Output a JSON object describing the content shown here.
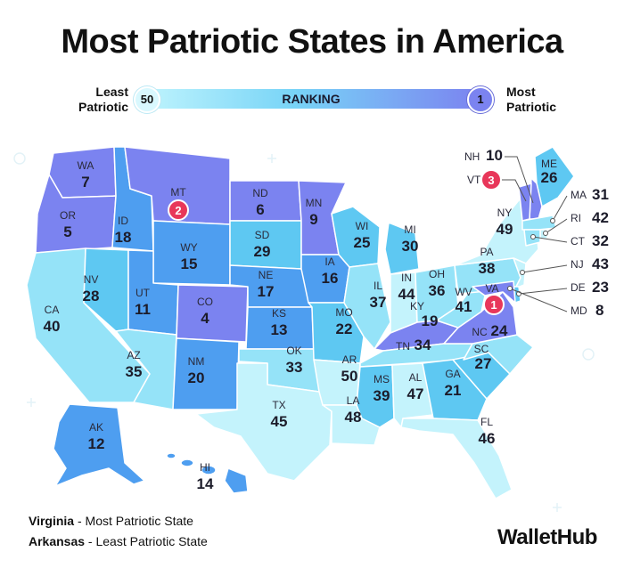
{
  "title": "Most Patriotic States in America",
  "legend": {
    "left_label": "Least Patriotic",
    "left_rank": "50",
    "center_label": "RANKING",
    "right_rank": "1",
    "right_label": "Most Patriotic"
  },
  "states": {
    "WA": {
      "abbr": "WA",
      "rank": "7"
    },
    "OR": {
      "abbr": "OR",
      "rank": "5"
    },
    "CA": {
      "abbr": "CA",
      "rank": "40"
    },
    "ID": {
      "abbr": "ID",
      "rank": "18"
    },
    "NV": {
      "abbr": "NV",
      "rank": "28"
    },
    "MT": {
      "abbr": "MT",
      "rank": "2"
    },
    "WY": {
      "abbr": "WY",
      "rank": "15"
    },
    "UT": {
      "abbr": "UT",
      "rank": "11"
    },
    "AZ": {
      "abbr": "AZ",
      "rank": "35"
    },
    "CO": {
      "abbr": "CO",
      "rank": "4"
    },
    "NM": {
      "abbr": "NM",
      "rank": "20"
    },
    "ND": {
      "abbr": "ND",
      "rank": "6"
    },
    "SD": {
      "abbr": "SD",
      "rank": "29"
    },
    "NE": {
      "abbr": "NE",
      "rank": "17"
    },
    "KS": {
      "abbr": "KS",
      "rank": "13"
    },
    "OK": {
      "abbr": "OK",
      "rank": "33"
    },
    "TX": {
      "abbr": "TX",
      "rank": "45"
    },
    "MN": {
      "abbr": "MN",
      "rank": "9"
    },
    "IA": {
      "abbr": "IA",
      "rank": "16"
    },
    "MO": {
      "abbr": "MO",
      "rank": "22"
    },
    "AR": {
      "abbr": "AR",
      "rank": "50"
    },
    "LA": {
      "abbr": "LA",
      "rank": "48"
    },
    "WI": {
      "abbr": "WI",
      "rank": "25"
    },
    "IL": {
      "abbr": "IL",
      "rank": "37"
    },
    "MI": {
      "abbr": "MI",
      "rank": "30"
    },
    "IN": {
      "abbr": "IN",
      "rank": "44"
    },
    "OH": {
      "abbr": "OH",
      "rank": "36"
    },
    "KY": {
      "abbr": "KY",
      "rank": "19"
    },
    "TN": {
      "abbr": "TN",
      "rank": "34"
    },
    "MS": {
      "abbr": "MS",
      "rank": "39"
    },
    "AL": {
      "abbr": "AL",
      "rank": "47"
    },
    "GA": {
      "abbr": "GA",
      "rank": "21"
    },
    "FL": {
      "abbr": "FL",
      "rank": "46"
    },
    "SC": {
      "abbr": "SC",
      "rank": "27"
    },
    "NC": {
      "abbr": "NC",
      "rank": "24"
    },
    "VA": {
      "abbr": "VA",
      "rank": "1"
    },
    "WV": {
      "abbr": "WV",
      "rank": "41"
    },
    "PA": {
      "abbr": "PA",
      "rank": "38"
    },
    "NY": {
      "abbr": "NY",
      "rank": "49"
    },
    "ME": {
      "abbr": "ME",
      "rank": "26"
    },
    "NH": {
      "abbr": "NH",
      "rank": "10"
    },
    "VT": {
      "abbr": "VT",
      "rank": "3"
    },
    "MA": {
      "abbr": "MA",
      "rank": "31"
    },
    "RI": {
      "abbr": "RI",
      "rank": "42"
    },
    "CT": {
      "abbr": "CT",
      "rank": "32"
    },
    "NJ": {
      "abbr": "NJ",
      "rank": "43"
    },
    "DE": {
      "abbr": "DE",
      "rank": "23"
    },
    "MD": {
      "abbr": "MD",
      "rank": "8"
    },
    "AK": {
      "abbr": "AK",
      "rank": "12"
    },
    "HI": {
      "abbr": "HI",
      "rank": "14"
    }
  },
  "colors": {
    "tier1": "#7b83f0",
    "tier2": "#4e9ef0",
    "tier3": "#5ec8f2",
    "tier4": "#95e3f8",
    "tier5": "#c4f3fc",
    "badge": "#e8375a"
  },
  "footnotes": {
    "most_state": "Virginia",
    "most_desc": " - Most Patriotic State",
    "least_state": "Arkansas",
    "least_desc": " - Least Patriotic State"
  },
  "brand": "WalletHub"
}
